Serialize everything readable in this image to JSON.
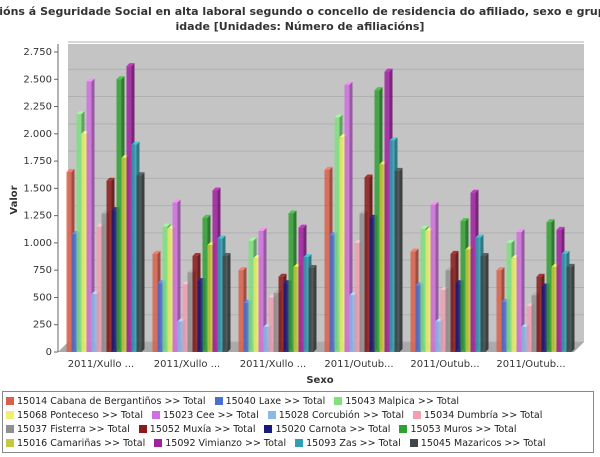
{
  "chart_data": {
    "type": "bar",
    "title": "Afiliacións á Seguridade Social en alta laboral segundo o concello de residencia do afiliado, sexo e grupos de idade [Unidades: Número de afiliacións]",
    "x_label": "Sexo",
    "y_label": "Valor",
    "categories": [
      "2011/Xullo ...",
      "2011/Xullo ...",
      "2011/Xullo ...",
      "2011/Outub...",
      "2011/Outub...",
      "2011/Outub..."
    ],
    "ylim": [
      0,
      2750
    ],
    "yticks": [
      0,
      250,
      500,
      750,
      {
        "value": 1000,
        "label": "1.000"
      },
      {
        "value": 1250,
        "label": "1.250"
      },
      {
        "value": 1500,
        "label": "1.500"
      },
      {
        "value": 1750,
        "label": "1.750"
      },
      {
        "value": 2000,
        "label": "2.000"
      },
      {
        "value": 2250,
        "label": "2.250"
      },
      {
        "value": 2500,
        "label": "2.500"
      },
      {
        "value": 2750,
        "label": "2.750"
      }
    ],
    "grid": true,
    "series": [
      {
        "name": "15014 Cabana de Bergantiños >> Total",
        "color": "#d9604a",
        "values": [
          1650,
          900,
          750,
          1670,
          920,
          750
        ]
      },
      {
        "name": "15040 Laxe >> Total",
        "color": "#4a6fd0",
        "values": [
          1080,
          630,
          450,
          1070,
          610,
          460
        ]
      },
      {
        "name": "15043 Malpica >> Total",
        "color": "#7ee07e",
        "values": [
          2180,
          1150,
          1020,
          2150,
          1130,
          1000
        ]
      },
      {
        "name": "15068 Ponteceso >> Total",
        "color": "#f0f070",
        "values": [
          2000,
          1130,
          860,
          1970,
          1110,
          860
        ]
      },
      {
        "name": "15023 Cee >> Total",
        "color": "#d070e0",
        "values": [
          2480,
          1370,
          1110,
          2450,
          1350,
          1100
        ]
      },
      {
        "name": "15028 Corcubión >> Total",
        "color": "#8ab8e8",
        "values": [
          530,
          280,
          230,
          520,
          280,
          230
        ]
      },
      {
        "name": "15034 Dumbría >> Total",
        "color": "#f0a0b0",
        "values": [
          1150,
          620,
          500,
          1000,
          570,
          420
        ]
      },
      {
        "name": "15037 Fisterra >> Total",
        "color": "#909090",
        "values": [
          1270,
          730,
          540,
          1270,
          750,
          520
        ]
      },
      {
        "name": "15052 Muxía >> Total",
        "color": "#8b1a1a",
        "values": [
          1570,
          880,
          690,
          1600,
          900,
          690
        ]
      },
      {
        "name": "15020 Carnota >> Total",
        "color": "#1a1a7a",
        "values": [
          1300,
          650,
          630,
          1230,
          630,
          600
        ]
      },
      {
        "name": "15053 Muros >> Total",
        "color": "#30a030",
        "values": [
          2500,
          1230,
          1270,
          2400,
          1200,
          1190
        ]
      },
      {
        "name": "15016 Camariñas >> Total",
        "color": "#c8c840",
        "values": [
          1780,
          980,
          780,
          1720,
          940,
          780
        ]
      },
      {
        "name": "15092 Vimianzo >> Total",
        "color": "#a020a0",
        "values": [
          2620,
          1480,
          1140,
          2570,
          1460,
          1120
        ]
      },
      {
        "name": "15093 Zas >> Total",
        "color": "#30a0b0",
        "values": [
          1900,
          1040,
          870,
          1940,
          1050,
          900
        ]
      },
      {
        "name": "15045 Mazaricos >> Total",
        "color": "#404848",
        "values": [
          1620,
          880,
          770,
          1660,
          880,
          780
        ]
      }
    ]
  }
}
